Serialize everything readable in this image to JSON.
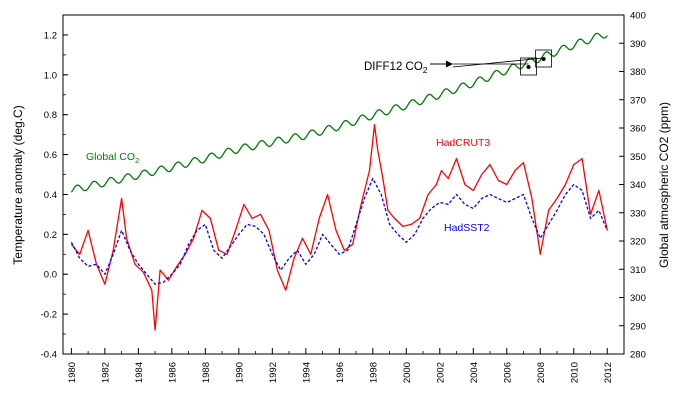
{
  "chart_data": {
    "type": "line",
    "title": "",
    "xlabel": "",
    "ylabel": "Temperature anomaly (deg.C)",
    "ylabel_right": "Global atmospheric CO2 (ppm)",
    "xlim": [
      1979.5,
      2013.0
    ],
    "ylim": [
      -0.4,
      1.3
    ],
    "ylim_right": [
      280,
      400
    ],
    "x_ticks": [
      1980,
      1982,
      1984,
      1986,
      1988,
      1990,
      1992,
      1994,
      1996,
      1998,
      2000,
      2002,
      2004,
      2006,
      2008,
      2010,
      2012
    ],
    "y_ticks": [
      -0.4,
      -0.2,
      0.0,
      0.2,
      0.4,
      0.6,
      0.8,
      1.0,
      1.2
    ],
    "y_right_ticks": [
      280,
      290,
      300,
      310,
      320,
      330,
      340,
      350,
      360,
      370,
      380,
      390,
      400
    ],
    "grid": false,
    "legend": "none",
    "annotations": {
      "hadcrut3": "HadCRUT3",
      "hadsst2": "HadSST2",
      "global_co2_base": "Global CO",
      "global_co2_sub": "2",
      "diff12_base": "DIFF12 CO",
      "diff12_sub": "2"
    },
    "series": [
      {
        "name": "HadCRUT3",
        "axis": "left",
        "color": "#ff0000",
        "style": "solid",
        "x": [
          1980.0,
          1980.5,
          1981.0,
          1981.5,
          1982.0,
          1982.5,
          1983.0,
          1983.3,
          1983.8,
          1984.3,
          1984.8,
          1985.0,
          1985.3,
          1985.8,
          1986.3,
          1986.8,
          1987.3,
          1987.8,
          1988.3,
          1988.8,
          1989.3,
          1989.8,
          1990.3,
          1990.8,
          1991.3,
          1991.8,
          1992.3,
          1992.8,
          1993.3,
          1993.8,
          1994.3,
          1994.8,
          1995.3,
          1995.8,
          1996.3,
          1996.8,
          1997.3,
          1997.8,
          1998.1,
          1998.3,
          1998.6,
          1998.9,
          1999.3,
          1999.8,
          2000.3,
          2000.8,
          2001.3,
          2001.8,
          2002.1,
          2002.5,
          2003.0,
          2003.5,
          2004.0,
          2004.5,
          2005.0,
          2005.5,
          2006.0,
          2006.5,
          2007.0,
          2007.5,
          2008.0,
          2008.5,
          2009.0,
          2009.5,
          2010.0,
          2010.5,
          2011.0,
          2011.5,
          2012.0
        ],
        "values": [
          0.15,
          0.1,
          0.22,
          0.05,
          -0.05,
          0.12,
          0.38,
          0.18,
          0.05,
          0.01,
          -0.08,
          -0.28,
          0.02,
          -0.03,
          0.04,
          0.1,
          0.18,
          0.32,
          0.28,
          0.12,
          0.1,
          0.22,
          0.35,
          0.28,
          0.3,
          0.22,
          0.02,
          -0.08,
          0.08,
          0.18,
          0.1,
          0.28,
          0.4,
          0.22,
          0.12,
          0.15,
          0.35,
          0.52,
          0.75,
          0.62,
          0.48,
          0.32,
          0.28,
          0.24,
          0.25,
          0.28,
          0.4,
          0.45,
          0.52,
          0.48,
          0.58,
          0.45,
          0.42,
          0.5,
          0.55,
          0.47,
          0.45,
          0.52,
          0.56,
          0.38,
          0.1,
          0.32,
          0.38,
          0.45,
          0.55,
          0.58,
          0.3,
          0.42,
          0.22
        ]
      },
      {
        "name": "HadSST2",
        "axis": "left",
        "color": "#0000ff",
        "style": "dashed",
        "x": [
          1980.0,
          1980.5,
          1981.0,
          1981.5,
          1982.0,
          1982.5,
          1983.0,
          1983.5,
          1984.0,
          1984.5,
          1985.0,
          1985.5,
          1986.0,
          1986.5,
          1987.0,
          1987.5,
          1988.0,
          1988.5,
          1989.0,
          1989.5,
          1990.0,
          1990.5,
          1991.0,
          1991.5,
          1992.0,
          1992.5,
          1993.0,
          1993.5,
          1994.0,
          1994.5,
          1995.0,
          1995.5,
          1996.0,
          1996.5,
          1997.0,
          1997.5,
          1998.0,
          1998.5,
          1999.0,
          1999.5,
          2000.0,
          2000.5,
          2001.0,
          2001.5,
          2002.0,
          2002.5,
          2003.0,
          2003.5,
          2004.0,
          2004.5,
          2005.0,
          2005.5,
          2006.0,
          2006.5,
          2007.0,
          2007.5,
          2008.0,
          2008.5,
          2009.0,
          2009.5,
          2010.0,
          2010.5,
          2011.0,
          2011.5,
          2012.0
        ],
        "values": [
          0.16,
          0.08,
          0.04,
          0.05,
          0.0,
          0.1,
          0.22,
          0.12,
          0.05,
          0.0,
          -0.05,
          -0.04,
          0.0,
          0.05,
          0.15,
          0.22,
          0.25,
          0.12,
          0.08,
          0.14,
          0.2,
          0.25,
          0.24,
          0.2,
          0.1,
          0.02,
          0.08,
          0.12,
          0.05,
          0.1,
          0.2,
          0.15,
          0.1,
          0.12,
          0.25,
          0.38,
          0.48,
          0.4,
          0.25,
          0.2,
          0.16,
          0.2,
          0.28,
          0.33,
          0.36,
          0.35,
          0.4,
          0.35,
          0.33,
          0.38,
          0.4,
          0.38,
          0.36,
          0.38,
          0.4,
          0.28,
          0.18,
          0.25,
          0.32,
          0.4,
          0.45,
          0.42,
          0.28,
          0.32,
          0.22
        ]
      },
      {
        "name": "Global CO2",
        "axis": "right",
        "color": "#007a00",
        "style": "solid",
        "seasonal_amplitude_ppm": 1.3,
        "x": [
          1980,
          1982,
          1984,
          1986,
          1988,
          1990,
          1992,
          1994,
          1996,
          1998,
          2000,
          2002,
          2004,
          2006,
          2008,
          2010,
          2012
        ],
        "values": [
          338.0,
          340.7,
          343.3,
          346.1,
          349.2,
          352.6,
          355.0,
          357.4,
          360.6,
          364.5,
          368.0,
          371.8,
          375.9,
          380.5,
          384.8,
          389.4,
          393.5
        ]
      }
    ]
  }
}
